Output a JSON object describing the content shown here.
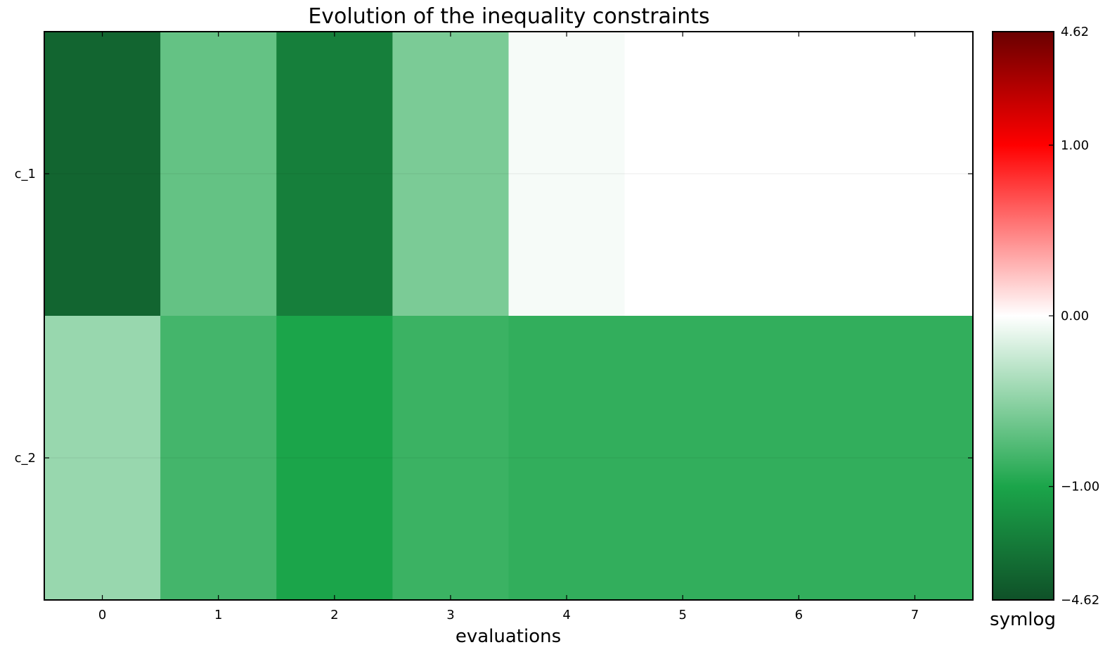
{
  "chart_data": {
    "type": "heatmap",
    "title": "Evolution of the inequality constraints",
    "xlabel": "evaluations",
    "ylabel": "",
    "x_ticks": [
      "0",
      "1",
      "2",
      "3",
      "4",
      "5",
      "6",
      "7"
    ],
    "rows": [
      "c_1",
      "c_2"
    ],
    "values": [
      [
        -3.2,
        -0.68,
        -2.0,
        -0.58,
        -0.04,
        0.0,
        0.0,
        0.0
      ],
      [
        -0.45,
        -0.82,
        -1.0,
        -0.86,
        -0.9,
        -0.9,
        -0.9,
        -0.9
      ]
    ],
    "color_scale": "symlog",
    "vmin": -4.62,
    "vmax": 4.62,
    "linthresh": 1.0,
    "colorbar": {
      "ticks": [
        4.62,
        1.0,
        0.0,
        -1.0,
        -4.62
      ],
      "tick_labels": [
        "4.62",
        "1.00",
        "0.00",
        "−1.00",
        "−4.62"
      ],
      "label": "symlog"
    },
    "colormap": [
      {
        "v": -4.62,
        "color": "#0f5128"
      },
      {
        "v": -1.0,
        "color": "#1ba54a"
      },
      {
        "v": 0.0,
        "color": "#ffffff"
      },
      {
        "v": 1.0,
        "color": "#ff0000"
      },
      {
        "v": 4.62,
        "color": "#6a0000"
      }
    ],
    "grid": true
  }
}
